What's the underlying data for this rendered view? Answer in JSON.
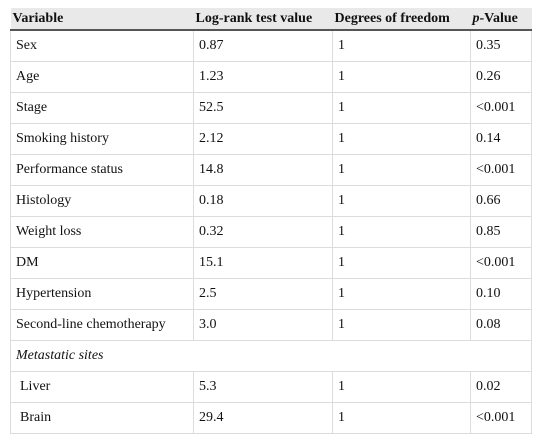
{
  "table": {
    "header": [
      "Variable",
      "Log-rank test value",
      "Degrees of freedom",
      "p-Value"
    ],
    "rows": [
      [
        "Sex",
        "0.87",
        "1",
        "0.35"
      ],
      [
        "Age",
        "1.23",
        "1",
        "0.26"
      ],
      [
        "Stage",
        "52.5",
        "1",
        "<0.001"
      ],
      [
        "Smoking history",
        "2.12",
        "1",
        "0.14"
      ],
      [
        "Performance status",
        "14.8",
        "1",
        "<0.001"
      ],
      [
        "Histology",
        "0.18",
        "1",
        "0.66"
      ],
      [
        "Weight loss",
        "0.32",
        "1",
        "0.85"
      ],
      [
        "DM",
        "15.1",
        "1",
        "<0.001"
      ],
      [
        "Hypertension",
        "2.5",
        "1",
        "0.10"
      ],
      [
        "Second-line chemotherapy",
        "3.0",
        "1",
        "0.08"
      ],
      [
        "Metastatic sites"
      ],
      [
        "Liver",
        "5.3",
        "1",
        "0.02"
      ],
      [
        "Brain",
        "29.4",
        "1",
        "<0.001"
      ]
    ]
  }
}
